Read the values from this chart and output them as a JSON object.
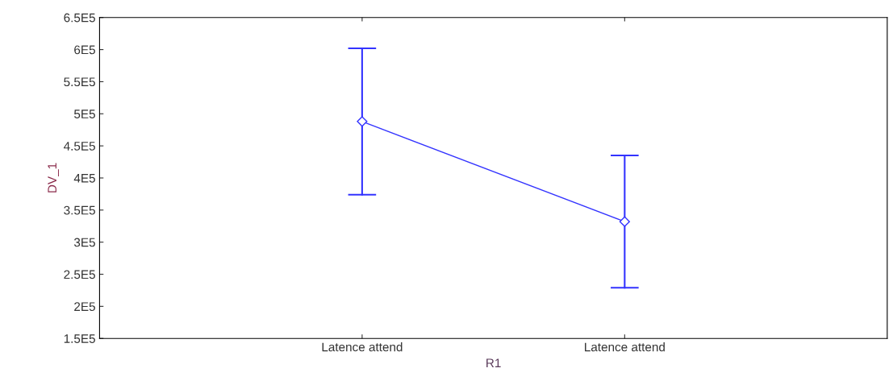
{
  "chart_data": {
    "type": "line",
    "xlabel": "R1",
    "ylabel": "DV_1",
    "categories": [
      "Latence attend",
      "Latence attend"
    ],
    "series": [
      {
        "color": "#3333ff",
        "values": [
          488000,
          332000
        ],
        "errors": [
          [
            374000,
            602000
          ],
          [
            229000,
            435000
          ]
        ]
      }
    ],
    "marker": "diamond",
    "grid": false,
    "ylim": [
      150000,
      650000
    ],
    "yticks": [
      {
        "value": 150000,
        "label": "1.5E5"
      },
      {
        "value": 200000,
        "label": "2E5"
      },
      {
        "value": 250000,
        "label": "2.5E5"
      },
      {
        "value": 300000,
        "label": "3E5"
      },
      {
        "value": 350000,
        "label": "3.5E5"
      },
      {
        "value": 400000,
        "label": "4E5"
      },
      {
        "value": 450000,
        "label": "4.5E5"
      },
      {
        "value": 500000,
        "label": "5E5"
      },
      {
        "value": 550000,
        "label": "5.5E5"
      },
      {
        "value": 600000,
        "label": "6E5"
      },
      {
        "value": 650000,
        "label": "6.5E5"
      }
    ]
  }
}
